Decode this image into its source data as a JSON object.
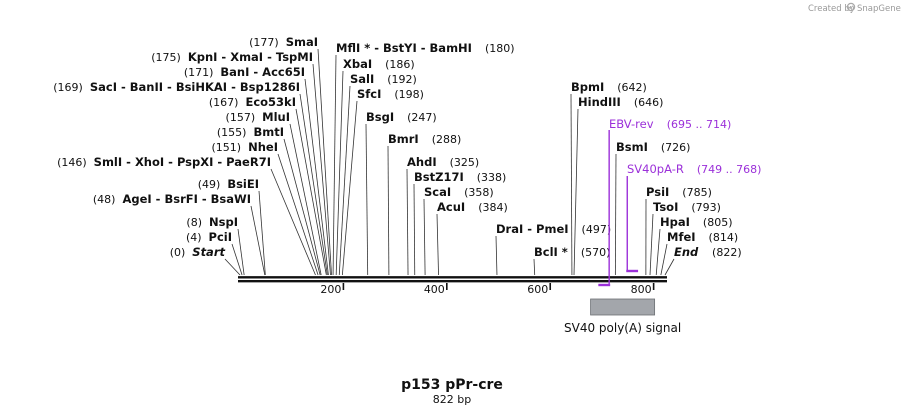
{
  "credit": {
    "created_by": "Created by",
    "brand": "SnapGene"
  },
  "map": {
    "name": "p153 pPr-cre",
    "length_label": "822 bp",
    "length": 822
  },
  "ruler": {
    "ticks": [
      "200",
      "400",
      "600",
      "800"
    ],
    "tick_values": [
      200,
      400,
      600,
      800
    ]
  },
  "enzymes": [
    {
      "name": "Start",
      "pos": "(0)",
      "bp": 0,
      "italic": true
    },
    {
      "name": "PciI",
      "pos": "(4)",
      "bp": 4
    },
    {
      "name": "NspI",
      "pos": "(8)",
      "bp": 8
    },
    {
      "name": "AgeI - BsrFI - BsaWI",
      "pos": "(48)",
      "bp": 48
    },
    {
      "name": "BsiEI",
      "pos": "(49)",
      "bp": 49
    },
    {
      "name": "SmlI - XhoI - PspXI - PaeR7I",
      "pos": "(146)",
      "bp": 146
    },
    {
      "name": "NheI",
      "pos": "(151)",
      "bp": 151
    },
    {
      "name": "BmtI",
      "pos": "(155)",
      "bp": 155
    },
    {
      "name": "MluI",
      "pos": "(157)",
      "bp": 157
    },
    {
      "name": "Eco53kI",
      "pos": "(167)",
      "bp": 167
    },
    {
      "name": "SacI - BanII - BsiHKAI - Bsp1286I",
      "pos": "(169)",
      "bp": 169
    },
    {
      "name": "BanI - Acc65I",
      "pos": "(171)",
      "bp": 171
    },
    {
      "name": "KpnI - XmaI - TspMI",
      "pos": "(175)",
      "bp": 175
    },
    {
      "name": "SmaI",
      "pos": "(177)",
      "bp": 177
    },
    {
      "name": "MflI * - BstYI - BamHI",
      "pos": "(180)",
      "bp": 180
    },
    {
      "name": "XbaI",
      "pos": "(186)",
      "bp": 186
    },
    {
      "name": "SalI",
      "pos": "(192)",
      "bp": 192
    },
    {
      "name": "SfcI",
      "pos": "(198)",
      "bp": 198
    },
    {
      "name": "BsgI",
      "pos": "(247)",
      "bp": 247
    },
    {
      "name": "BmrI",
      "pos": "(288)",
      "bp": 288
    },
    {
      "name": "AhdI",
      "pos": "(325)",
      "bp": 325
    },
    {
      "name": "BstZ17I",
      "pos": "(338)",
      "bp": 338
    },
    {
      "name": "ScaI",
      "pos": "(358)",
      "bp": 358
    },
    {
      "name": "AcuI",
      "pos": "(384)",
      "bp": 384
    },
    {
      "name": "DraI - PmeI",
      "pos": "(497)",
      "bp": 497
    },
    {
      "name": "BclI *",
      "pos": "(570)",
      "bp": 570
    },
    {
      "name": "BpmI",
      "pos": "(642)",
      "bp": 642
    },
    {
      "name": "HindIII",
      "pos": "(646)",
      "bp": 646
    },
    {
      "name": "BsmI",
      "pos": "(726)",
      "bp": 726
    },
    {
      "name": "PsiI",
      "pos": "(785)",
      "bp": 785
    },
    {
      "name": "TsoI",
      "pos": "(793)",
      "bp": 793
    },
    {
      "name": "HpaI",
      "pos": "(805)",
      "bp": 805
    },
    {
      "name": "MfeI",
      "pos": "(814)",
      "bp": 814
    },
    {
      "name": "End",
      "pos": "(822)",
      "bp": 822,
      "italic": true
    }
  ],
  "primers": [
    {
      "name": "EBV-rev",
      "range": "(695 .. 714)",
      "start": 695,
      "end": 714,
      "strand": "reverse",
      "color": "#9b30d9"
    },
    {
      "name": "SV40pA-R",
      "range": "(749 .. 768)",
      "start": 749,
      "end": 768,
      "strand": "forward",
      "color": "#9b30d9"
    }
  ],
  "features": [
    {
      "name": "SV40 poly(A) signal",
      "start": 680,
      "end": 800,
      "color": "#a3a6ab"
    }
  ]
}
